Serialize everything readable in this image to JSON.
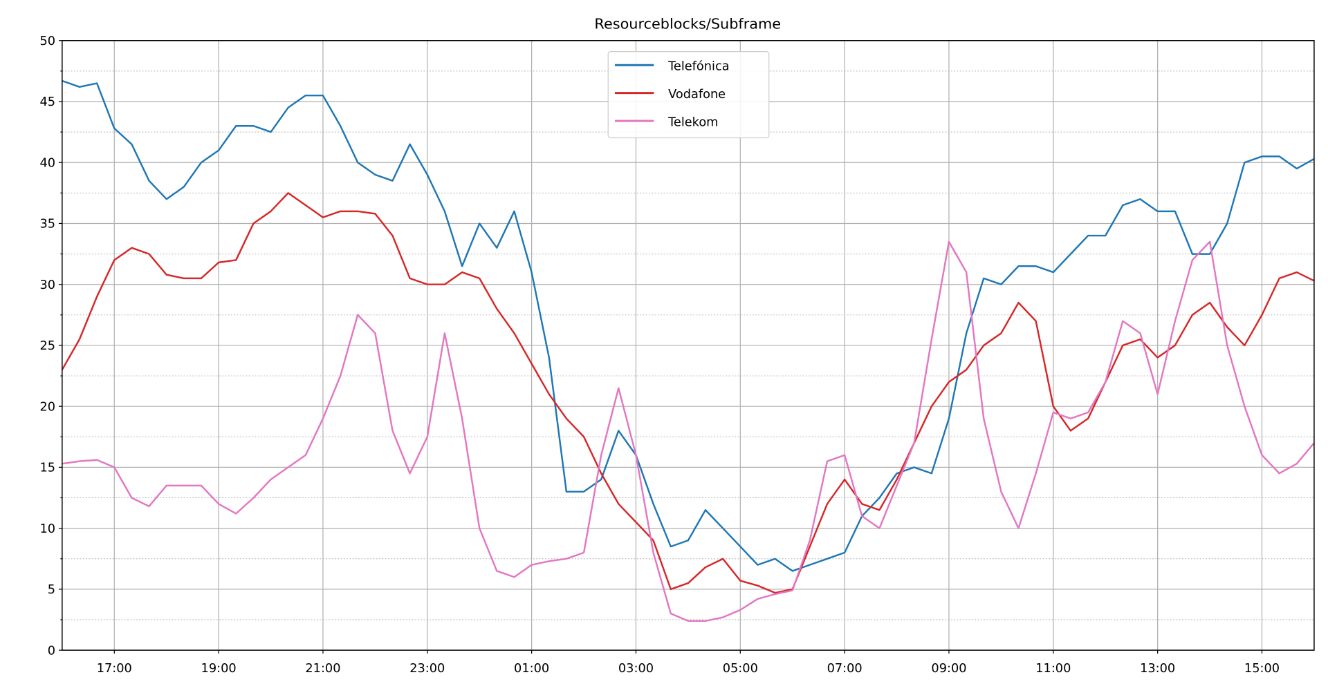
{
  "chart_data": {
    "type": "line",
    "title": "Resourceblocks/Subframe",
    "xlabel": "",
    "ylabel": "",
    "x_start": "16:00",
    "x_end": "16:00 (next day)",
    "x_step_minutes": 20,
    "xticks": [
      "17:00",
      "19:00",
      "21:00",
      "23:00",
      "01:00",
      "03:00",
      "05:00",
      "07:00",
      "09:00",
      "11:00",
      "13:00",
      "15:00"
    ],
    "yticks": [
      "0",
      "5",
      "10",
      "15",
      "20",
      "25",
      "30",
      "35",
      "40",
      "45",
      "50"
    ],
    "ylim": [
      0,
      50
    ],
    "grid": {
      "major": "solid",
      "minor_y": "dotted"
    },
    "legend": "top-center",
    "series": [
      {
        "name": "Telefónica",
        "color": "#1f77b4",
        "values": [
          46.7,
          46.2,
          46.5,
          42.8,
          41.5,
          38.5,
          37,
          38,
          40,
          41,
          43,
          43,
          42.5,
          44.5,
          45.5,
          45.5,
          43,
          40,
          39,
          38.5,
          41.5,
          39,
          36,
          31.5,
          35,
          33,
          36,
          31,
          24,
          13,
          13,
          14,
          18,
          16,
          12,
          8.5,
          9,
          11.5,
          10,
          8.5,
          7,
          7.5,
          6.5,
          7,
          7.5,
          8,
          11,
          12.5,
          14.5,
          15,
          14.5,
          19,
          26,
          30.5,
          30,
          31.5,
          31.5,
          31,
          32.5,
          34,
          34,
          36.5,
          37,
          36,
          36,
          32.5,
          32.5,
          35,
          40,
          40.5,
          40.5,
          39.5,
          40.3
        ]
      },
      {
        "name": "Vodafone",
        "color": "#d62728",
        "values": [
          23,
          25.5,
          29,
          32,
          33,
          32.5,
          30.8,
          30.5,
          30.5,
          31.8,
          32,
          35,
          36,
          37.5,
          36.5,
          35.5,
          36,
          36,
          35.8,
          34,
          30.5,
          30,
          30,
          31,
          30.5,
          28,
          26,
          23.5,
          21,
          19,
          17.5,
          14.5,
          12,
          10.5,
          9,
          5,
          5.5,
          6.8,
          7.5,
          5.7,
          5.3,
          4.7,
          5,
          8.5,
          12,
          14,
          12,
          11.5,
          14,
          17,
          20,
          22,
          23,
          25,
          26,
          28.5,
          27,
          20,
          18,
          19,
          22,
          25,
          25.5,
          24,
          25,
          27.5,
          28.5,
          26.5,
          25,
          27.5,
          30.5,
          31,
          30.3
        ]
      },
      {
        "name": "Telekom",
        "color": "#e377c2",
        "values": [
          15.3,
          15.5,
          15.6,
          15,
          12.5,
          11.8,
          13.5,
          13.5,
          13.5,
          12,
          11.2,
          12.5,
          14,
          15,
          16,
          19,
          22.5,
          27.5,
          26,
          18,
          14.5,
          17.5,
          26,
          19,
          10,
          6.5,
          6,
          7,
          7.3,
          7.5,
          8,
          16,
          21.5,
          16,
          8,
          3,
          2.4,
          2.4,
          2.7,
          3.3,
          4.2,
          4.6,
          4.9,
          9,
          15.5,
          16,
          11,
          10,
          13.5,
          17,
          25.5,
          33.5,
          31,
          19,
          13,
          10,
          14.5,
          19.5,
          19,
          19.5,
          22,
          27,
          26,
          21,
          27,
          32,
          33.5,
          25,
          20,
          16,
          14.5,
          15.3,
          17
        ]
      }
    ]
  }
}
